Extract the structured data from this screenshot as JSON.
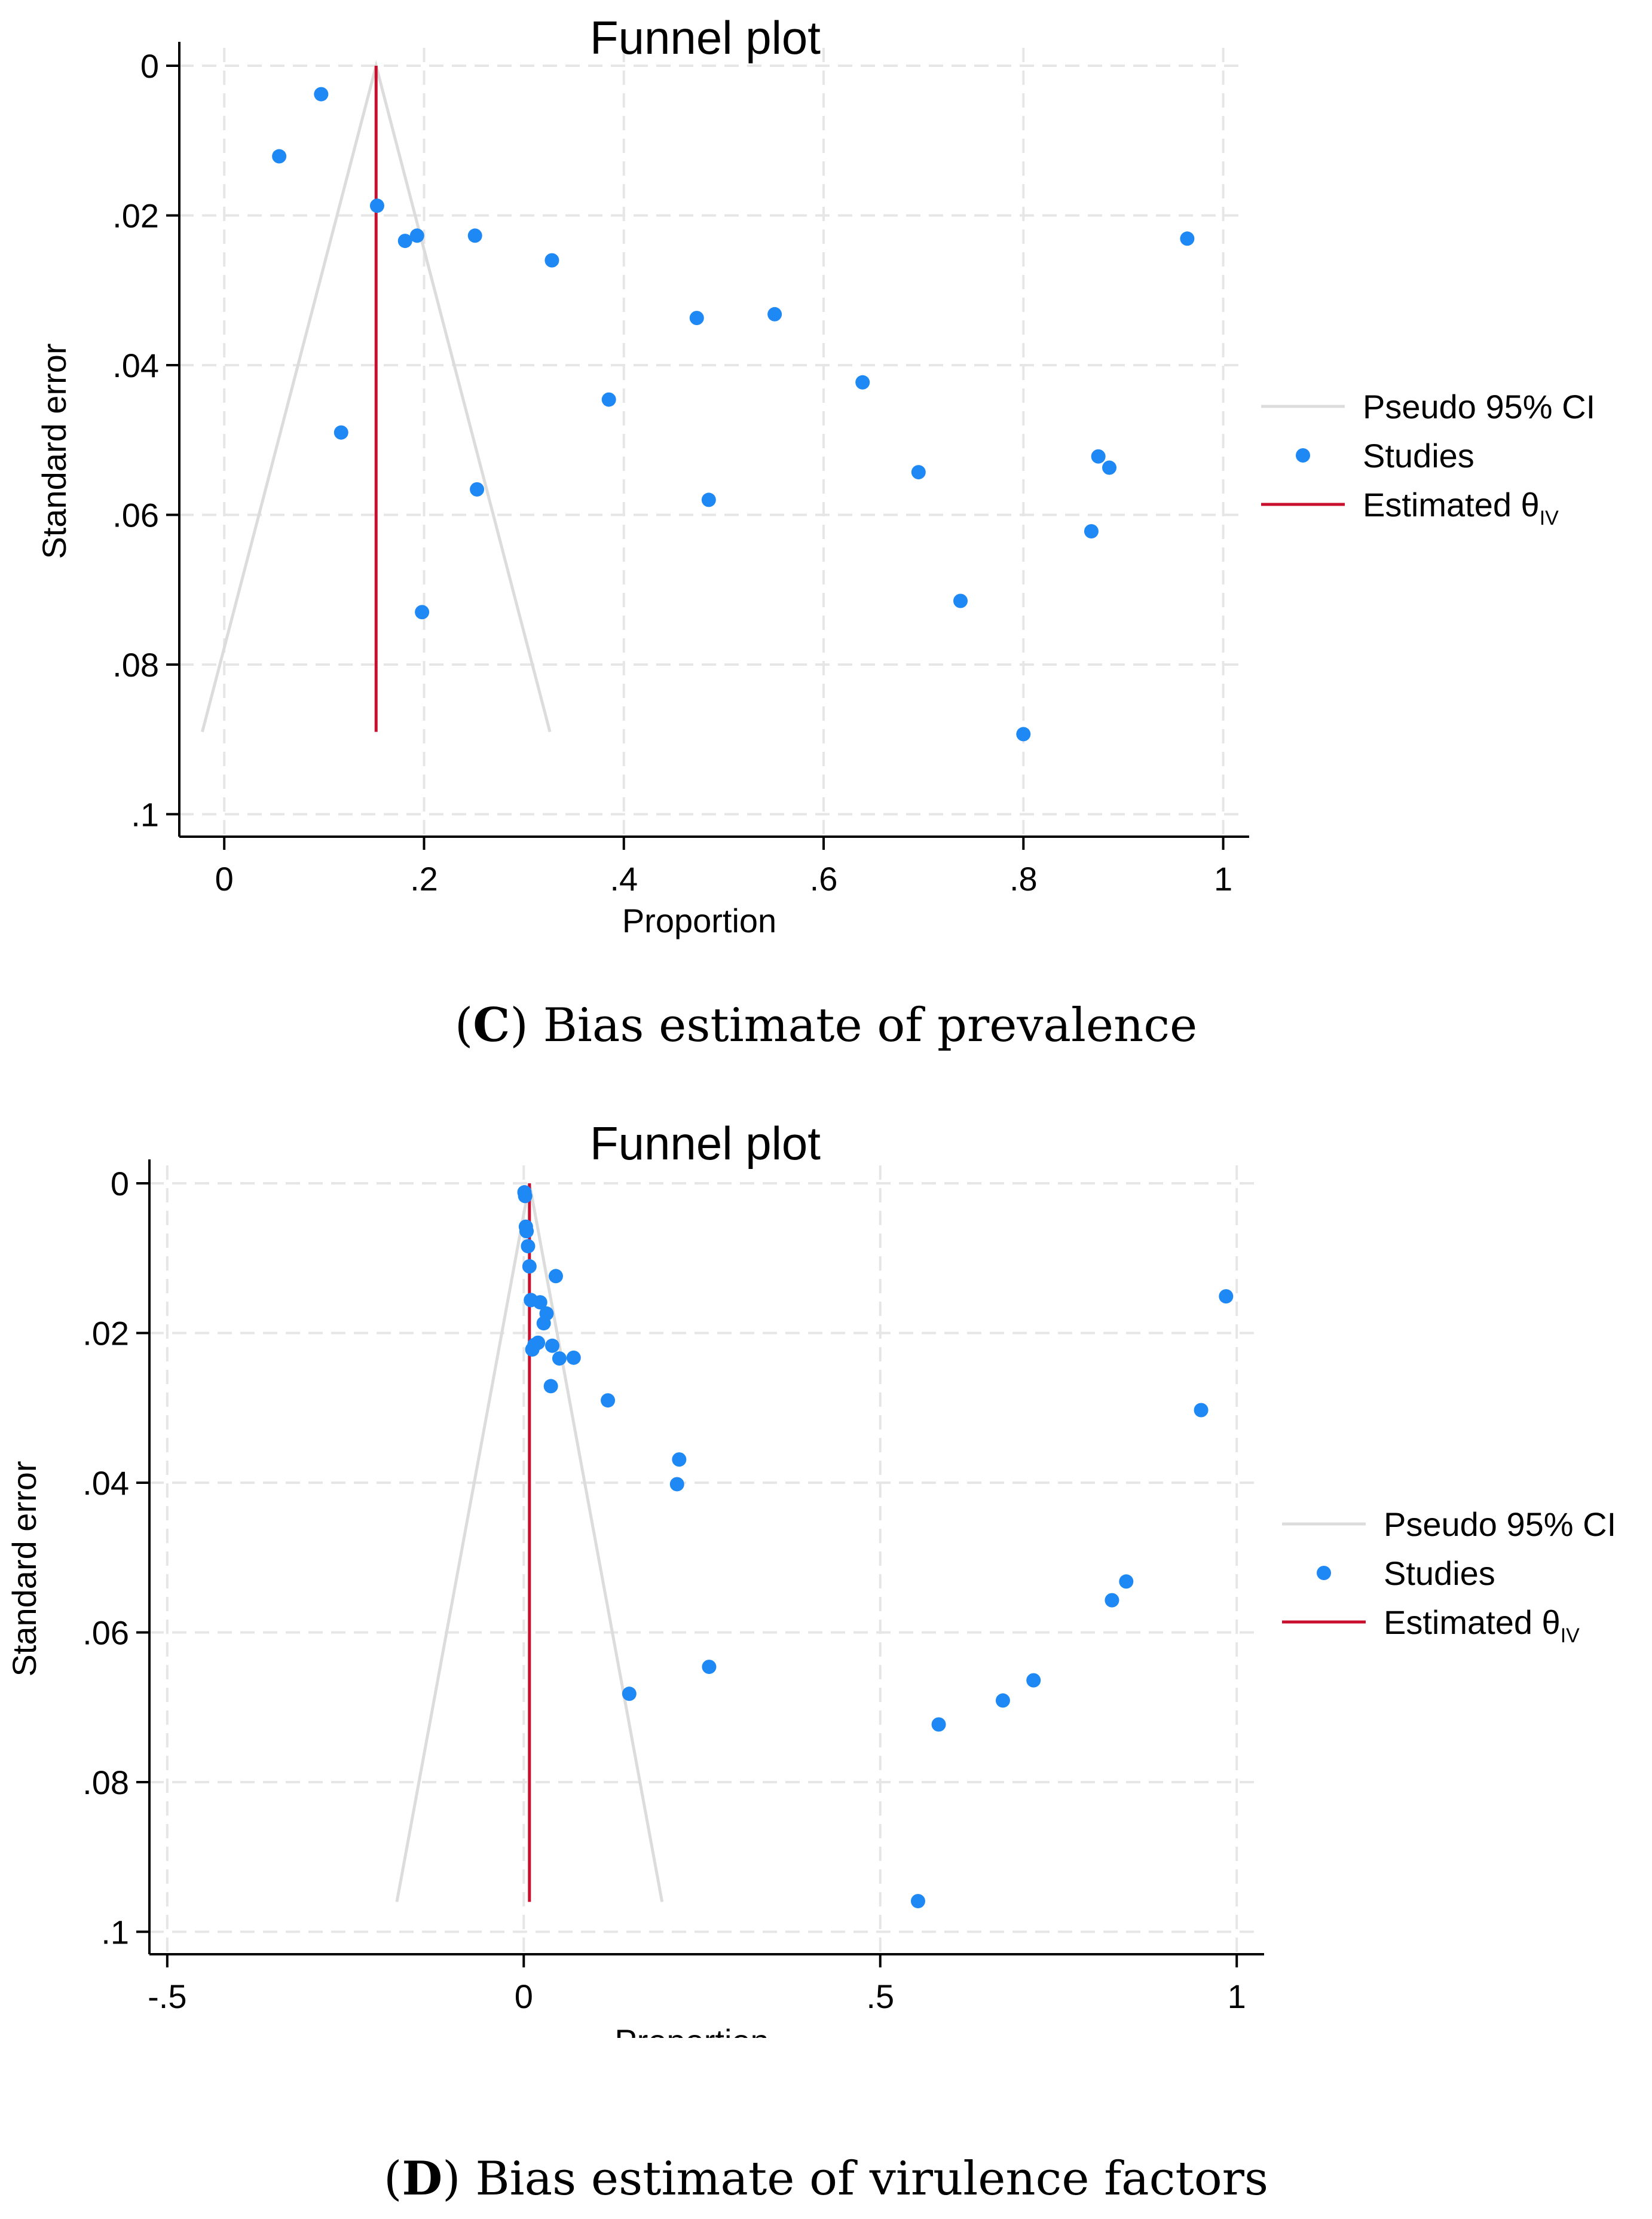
{
  "colors": {
    "studies": "#1e88f5",
    "estimate_line": "#c8102e",
    "ci_lines": "#dcdcdc",
    "grid": "#e6e6e6",
    "axis": "#000000"
  },
  "captions": [
    {
      "letter": "C",
      "text": " Bias estimate of prevalence"
    },
    {
      "letter": "D",
      "text": " Bias estimate of virulence factors"
    }
  ],
  "chart_data": [
    {
      "type": "scatter",
      "title": "Funnel plot",
      "xlabel": "Proportion",
      "ylabel": "Standard error",
      "xlim": [
        -0.045,
        1.02
      ],
      "ylim": [
        0,
        0.103
      ],
      "y_inverted": true,
      "grid": true,
      "xticks": [
        0,
        0.2,
        0.4,
        0.6,
        0.8,
        1
      ],
      "xtick_labels": [
        "0",
        ".2",
        ".4",
        ".6",
        ".8",
        "1"
      ],
      "yticks": [
        0,
        0.02,
        0.04,
        0.06,
        0.08,
        0.1
      ],
      "ytick_labels": [
        "0",
        ".02",
        ".04",
        ".06",
        ".08",
        ".1"
      ],
      "legend_position": "right",
      "legend": [
        "Pseudo 95% CI",
        "Studies",
        "Estimated θ"
      ],
      "legend_subscript": "IV",
      "estimate": 0.152,
      "estimate_line_range": [
        0,
        0.089
      ],
      "ci_funnel": {
        "apex": [
          0.152,
          0
        ],
        "left_bottom": [
          -0.022,
          0.089
        ],
        "right_bottom": [
          0.326,
          0.089
        ]
      },
      "studies": {
        "x": [
          0.055,
          0.097,
          0.153,
          0.181,
          0.193,
          0.251,
          0.328,
          0.117,
          0.253,
          0.198,
          0.385,
          0.473,
          0.551,
          0.485,
          0.639,
          0.695,
          0.737,
          0.875,
          0.886,
          0.868,
          0.8,
          0.964
        ],
        "se": [
          0.0121,
          0.0038,
          0.0187,
          0.0234,
          0.0227,
          0.0227,
          0.026,
          0.049,
          0.0566,
          0.073,
          0.0446,
          0.0337,
          0.0332,
          0.058,
          0.0423,
          0.0543,
          0.0715,
          0.0522,
          0.0537,
          0.0622,
          0.0893,
          0.0231
        ]
      }
    },
    {
      "type": "scatter",
      "title": "Funnel plot",
      "xlabel": "Proportion",
      "ylabel": "Standard error",
      "xlim": [
        -0.525,
        1.03
      ],
      "ylim": [
        0,
        0.103
      ],
      "y_inverted": true,
      "grid": true,
      "xticks": [
        -0.5,
        0,
        0.5,
        1
      ],
      "xtick_labels": [
        "-.5",
        "0",
        ".5",
        "1"
      ],
      "yticks": [
        0,
        0.02,
        0.04,
        0.06,
        0.08,
        0.1
      ],
      "ytick_labels": [
        "0",
        ".02",
        ".04",
        ".06",
        ".08",
        ".1"
      ],
      "legend_position": "right",
      "legend": [
        "Pseudo 95% CI",
        "Studies",
        "Estimated θ"
      ],
      "legend_subscript": "IV",
      "estimate": 0.008,
      "estimate_line_range": [
        0,
        0.096
      ],
      "ci_funnel": {
        "apex": [
          0.008,
          0
        ],
        "left_bottom": [
          -0.178,
          0.096
        ],
        "right_bottom": [
          0.194,
          0.096
        ]
      },
      "studies": {
        "x": [
          0.001,
          0.002,
          0.003,
          0.004,
          0.006,
          0.008,
          0.01,
          0.012,
          0.015,
          0.02,
          0.023,
          0.028,
          0.032,
          0.04,
          0.038,
          0.045,
          0.05,
          0.07,
          0.118,
          0.215,
          0.218,
          0.148,
          0.26,
          0.553,
          0.582,
          0.672,
          0.715,
          0.825,
          0.845,
          0.95,
          0.985
        ],
        "se": [
          0.0012,
          0.0017,
          0.0058,
          0.0064,
          0.0084,
          0.0111,
          0.0156,
          0.0222,
          0.0216,
          0.0213,
          0.0159,
          0.0187,
          0.0174,
          0.0217,
          0.0271,
          0.0124,
          0.0234,
          0.0233,
          0.029,
          0.0402,
          0.0369,
          0.0682,
          0.0646,
          0.0959,
          0.0723,
          0.0691,
          0.0664,
          0.0557,
          0.0532,
          0.0303,
          0.0151
        ]
      }
    }
  ]
}
